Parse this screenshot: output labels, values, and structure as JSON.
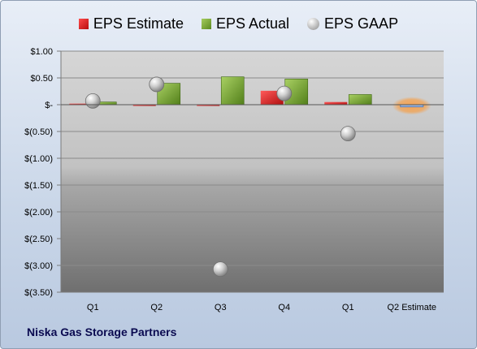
{
  "chart_data": {
    "type": "bar",
    "categories": [
      "Q1",
      "Q2",
      "Q3",
      "Q4",
      "Q1",
      "Q2 Estimate"
    ],
    "series": [
      {
        "name": "EPS Estimate",
        "type": "bar",
        "values": [
          0.02,
          -0.01,
          -0.02,
          0.26,
          0.05,
          -0.04
        ],
        "color": "#d42020"
      },
      {
        "name": "EPS Actual",
        "type": "bar",
        "values": [
          0.05,
          0.4,
          0.52,
          0.48,
          0.19,
          null
        ],
        "color": "#7aa83a"
      },
      {
        "name": "EPS GAAP",
        "type": "scatter",
        "values": [
          0.07,
          0.38,
          -3.07,
          0.21,
          -0.54,
          null
        ],
        "color": "#b8b8b8"
      }
    ],
    "yticks": [
      "$1.00",
      "$0.50",
      "$-",
      "$(0.50)",
      "$(1.00)",
      "$(1.50)",
      "$(2.00)",
      "$(2.50)",
      "$(3.00)",
      "$(3.50)"
    ],
    "ylim": [
      -3.5,
      1.0
    ],
    "grid": true,
    "legend_position": "top",
    "highlight_category": "Q2 Estimate",
    "highlight_color": "#f5a04a"
  },
  "legend": {
    "estimate": "EPS Estimate",
    "actual": "EPS Actual",
    "gaap": "EPS GAAP"
  },
  "caption": "Niska Gas Storage Partners"
}
